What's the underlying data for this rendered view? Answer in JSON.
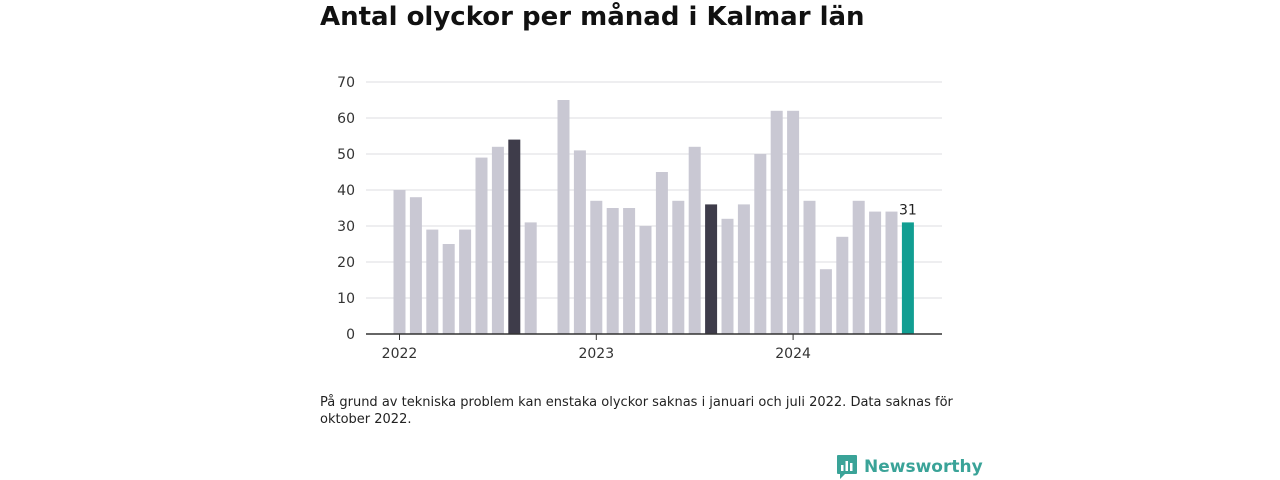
{
  "title": "Antal olyckor per månad i Kalmar län",
  "note": "På grund av tekniska problem kan enstaka olyckor saknas i januari och juli 2022. Data saknas för oktober 2022.",
  "brand": "Newsworthy",
  "colors": {
    "bar_default": "#c9c8d3",
    "bar_highlight": "#3e3c4a",
    "bar_latest": "#119e92",
    "brand": "#3aa398"
  },
  "chart_data": {
    "type": "bar",
    "title": "Antal olyckor per månad i Kalmar län",
    "xlabel": "",
    "ylabel": "",
    "ylim": [
      0,
      70
    ],
    "yticks": [
      0,
      10,
      20,
      30,
      40,
      50,
      60,
      70
    ],
    "grid": true,
    "year_labels": [
      "2022",
      "2023",
      "2024"
    ],
    "months": [
      {
        "year": 2022,
        "month": 1,
        "value": 40
      },
      {
        "year": 2022,
        "month": 2,
        "value": 38
      },
      {
        "year": 2022,
        "month": 3,
        "value": 29
      },
      {
        "year": 2022,
        "month": 4,
        "value": 25
      },
      {
        "year": 2022,
        "month": 5,
        "value": 29
      },
      {
        "year": 2022,
        "month": 6,
        "value": 49
      },
      {
        "year": 2022,
        "month": 7,
        "value": 52
      },
      {
        "year": 2022,
        "month": 8,
        "value": 54,
        "highlight": true
      },
      {
        "year": 2022,
        "month": 9,
        "value": 31
      },
      {
        "year": 2022,
        "month": 10,
        "value": null
      },
      {
        "year": 2022,
        "month": 11,
        "value": 65
      },
      {
        "year": 2022,
        "month": 12,
        "value": 51
      },
      {
        "year": 2023,
        "month": 1,
        "value": 37
      },
      {
        "year": 2023,
        "month": 2,
        "value": 35
      },
      {
        "year": 2023,
        "month": 3,
        "value": 35
      },
      {
        "year": 2023,
        "month": 4,
        "value": 30
      },
      {
        "year": 2023,
        "month": 5,
        "value": 45
      },
      {
        "year": 2023,
        "month": 6,
        "value": 37
      },
      {
        "year": 2023,
        "month": 7,
        "value": 52
      },
      {
        "year": 2023,
        "month": 8,
        "value": 36,
        "highlight": true
      },
      {
        "year": 2023,
        "month": 9,
        "value": 32
      },
      {
        "year": 2023,
        "month": 10,
        "value": 36
      },
      {
        "year": 2023,
        "month": 11,
        "value": 50
      },
      {
        "year": 2023,
        "month": 12,
        "value": 62
      },
      {
        "year": 2024,
        "month": 1,
        "value": 62
      },
      {
        "year": 2024,
        "month": 2,
        "value": 37
      },
      {
        "year": 2024,
        "month": 3,
        "value": 18
      },
      {
        "year": 2024,
        "month": 4,
        "value": 27
      },
      {
        "year": 2024,
        "month": 5,
        "value": 37
      },
      {
        "year": 2024,
        "month": 6,
        "value": 34
      },
      {
        "year": 2024,
        "month": 7,
        "value": 34
      },
      {
        "year": 2024,
        "month": 8,
        "value": 31,
        "latest": true
      }
    ],
    "latest_label": "31"
  }
}
